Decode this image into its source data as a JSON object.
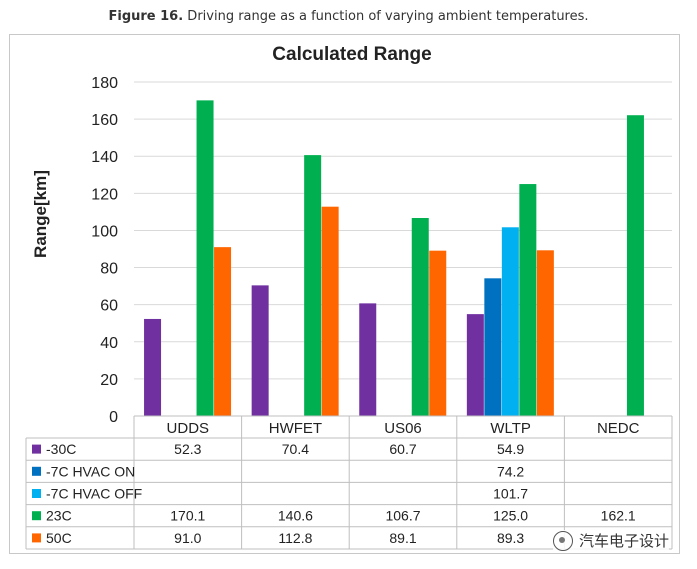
{
  "caption": {
    "label": "Figure 16.",
    "text": " Driving range as a function of varying ambient temperatures."
  },
  "watermark": {
    "text": "汽车电子设计",
    "icon": "wechat-icon"
  },
  "chart_data": {
    "type": "bar",
    "title": "Calculated Range",
    "xlabel": "",
    "ylabel": "Range[km]",
    "ylim": [
      0,
      180
    ],
    "yticks": [
      0,
      20,
      40,
      60,
      80,
      100,
      120,
      140,
      160,
      180
    ],
    "grid": true,
    "categories": [
      "UDDS",
      "HWFET",
      "US06",
      "WLTP",
      "NEDC"
    ],
    "series": [
      {
        "name": "-30C",
        "color": "#7030a0",
        "values": [
          52.3,
          70.4,
          60.7,
          54.9,
          null
        ]
      },
      {
        "name": "-7C HVAC ON",
        "color": "#0070c0",
        "values": [
          null,
          null,
          null,
          74.2,
          null
        ]
      },
      {
        "name": "-7C HVAC OFF",
        "color": "#00b0f0",
        "values": [
          null,
          null,
          null,
          101.7,
          null
        ]
      },
      {
        "name": "23C",
        "color": "#00b050",
        "values": [
          170.1,
          140.6,
          106.7,
          125.0,
          162.1
        ]
      },
      {
        "name": "50C",
        "color": "#ff6600",
        "values": [
          91.0,
          112.8,
          89.1,
          89.3,
          null
        ]
      }
    ],
    "table_values": [
      [
        "52.3",
        "70.4",
        "60.7",
        "54.9",
        ""
      ],
      [
        "",
        "",
        "",
        "74.2",
        ""
      ],
      [
        "",
        "",
        "",
        "101.7",
        ""
      ],
      [
        "170.1",
        "140.6",
        "106.7",
        "125.0",
        "162.1"
      ],
      [
        "91.0",
        "112.8",
        "89.1",
        "89.3",
        ""
      ]
    ]
  }
}
